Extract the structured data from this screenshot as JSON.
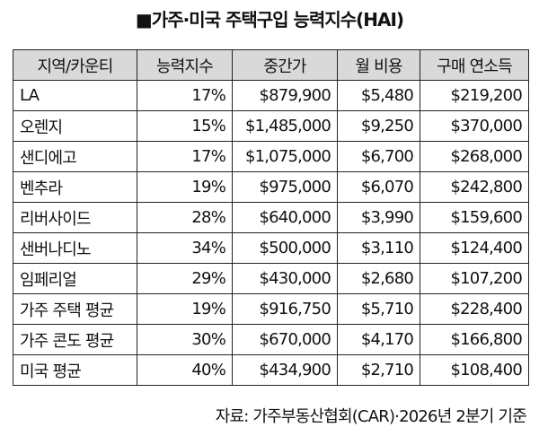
{
  "title": "■가주·미국 주택구입 능력지수(HAI)",
  "table": {
    "header": [
      "지역/카운티",
      "능력지수",
      "중간가",
      "월 비용",
      "구매 연소득"
    ],
    "rows": [
      [
        "LA",
        "17%",
        "$879,900",
        "$5,480",
        "$219,200"
      ],
      [
        "오렌지",
        "15%",
        "$1,485,000",
        "$9,250",
        "$370,000"
      ],
      [
        "샌디에고",
        "17%",
        "$1,075,000",
        "$6,700",
        "$268,000"
      ],
      [
        "벤추라",
        "19%",
        "$975,000",
        "$6,070",
        "$242,800"
      ],
      [
        "리버사이드",
        "28%",
        "$640,000",
        "$3,990",
        "$159,600"
      ],
      [
        "샌버나디노",
        "34%",
        "$500,000",
        "$3,110",
        "$124,400"
      ],
      [
        "임페리얼",
        "29%",
        "$430,000",
        "$2,680",
        "$107,200"
      ],
      [
        "가주 주택 평균",
        "19%",
        "$916,750",
        "$5,710",
        "$228,400"
      ],
      [
        "가주 콘도 평균",
        "30%",
        "$670,000",
        "$4,170",
        "$166,800"
      ],
      [
        "미국 평균",
        "40%",
        "$434,900",
        "$2,710",
        "$108,400"
      ]
    ]
  },
  "source": "자료: 가주부동산협회(CAR)·2026년 2분기 기준"
}
